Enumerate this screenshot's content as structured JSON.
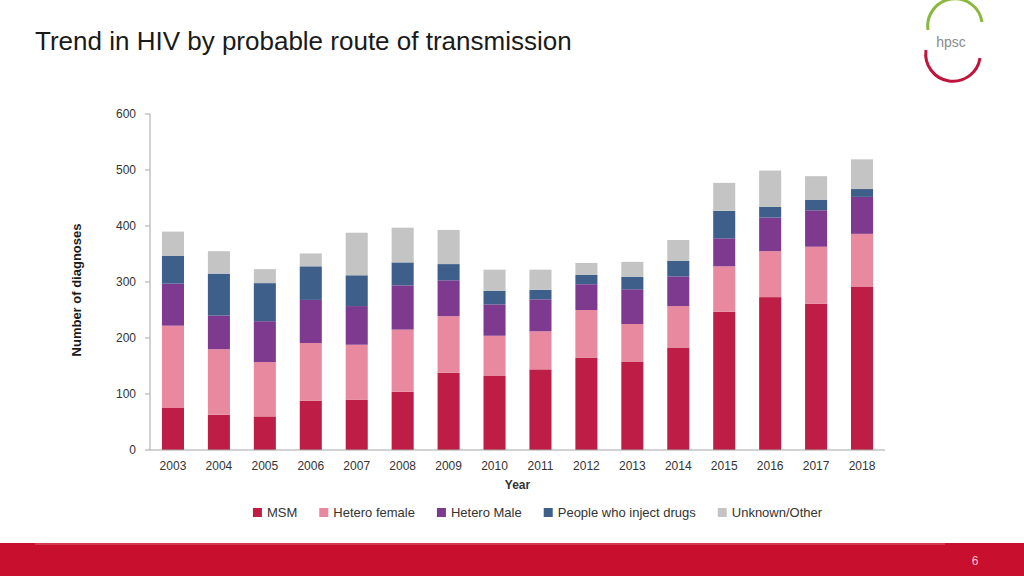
{
  "chart_data": {
    "type": "bar",
    "title": "Trend in HIV by probable route of transmission",
    "x_label": "Year",
    "y_label": "Number of diagnoses",
    "categories": [
      "2003",
      "2004",
      "2005",
      "2006",
      "2007",
      "2008",
      "2009",
      "2010",
      "2011",
      "2012",
      "2013",
      "2014",
      "2015",
      "2016",
      "2017",
      "2018"
    ],
    "series": [
      {
        "name": "MSM",
        "color": "#be1e45",
        "values": [
          75,
          63,
          60,
          88,
          90,
          104,
          138,
          133,
          144,
          165,
          158,
          183,
          247,
          273,
          261,
          292
        ]
      },
      {
        "name": "Hetero female",
        "color": "#e8899f",
        "values": [
          147,
          117,
          97,
          103,
          98,
          111,
          101,
          71,
          68,
          85,
          67,
          74,
          81,
          82,
          102,
          94
        ]
      },
      {
        "name": "Hetero Male",
        "color": "#7d3a8e",
        "values": [
          75,
          60,
          73,
          77,
          69,
          79,
          64,
          56,
          57,
          46,
          62,
          53,
          50,
          60,
          65,
          66
        ]
      },
      {
        "name": "People who inject drugs",
        "color": "#3e5f8a",
        "values": [
          50,
          75,
          68,
          60,
          55,
          41,
          29,
          24,
          17,
          17,
          22,
          28,
          49,
          19,
          19,
          14
        ]
      },
      {
        "name": "Unknown/Other",
        "color": "#c4c4c4",
        "values": [
          43,
          40,
          25,
          23,
          76,
          62,
          61,
          38,
          36,
          21,
          27,
          37,
          50,
          65,
          42,
          53
        ]
      }
    ],
    "ylim": [
      0,
      600
    ],
    "yticks": [
      0,
      100,
      200,
      300,
      400,
      500,
      600
    ],
    "stacked": true,
    "grid": false,
    "legend": "bottom"
  },
  "logo": "hpsc",
  "page_number": 6
}
